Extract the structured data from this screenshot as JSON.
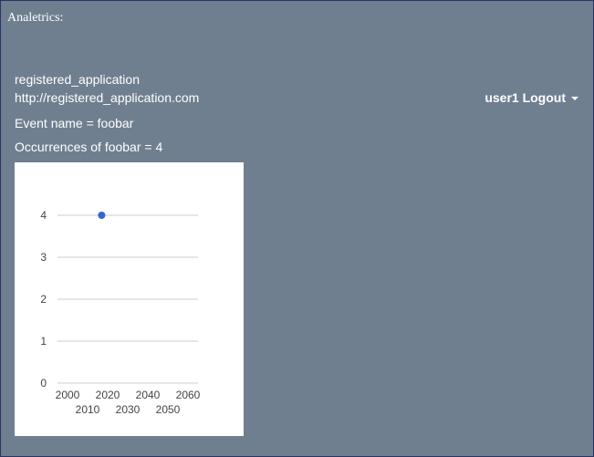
{
  "header": {
    "brand": "Analetrics:"
  },
  "application": {
    "name": "registered_application",
    "url": "http://registered_application.com"
  },
  "user_menu": {
    "label": "user1 Logout",
    "icon": "caret-down-icon"
  },
  "event": {
    "label": "Event name = foobar",
    "occurrences_label": "Occurrences of foobar = 4"
  },
  "colors": {
    "background": "#707f90",
    "point": "#3366cc",
    "gridline": "#cccccc"
  },
  "chart_data": {
    "type": "scatter",
    "series": [
      {
        "x": [
          2017
        ],
        "y": [
          4
        ]
      }
    ],
    "xlim": [
      1995,
      2065
    ],
    "ylim": [
      0,
      4
    ],
    "x_ticks": [
      "2000",
      "2010",
      "2020",
      "2030",
      "2040",
      "2050",
      "2060"
    ],
    "y_ticks": [
      "0",
      "1",
      "2",
      "3",
      "4"
    ],
    "grid": true,
    "legend": "none"
  }
}
